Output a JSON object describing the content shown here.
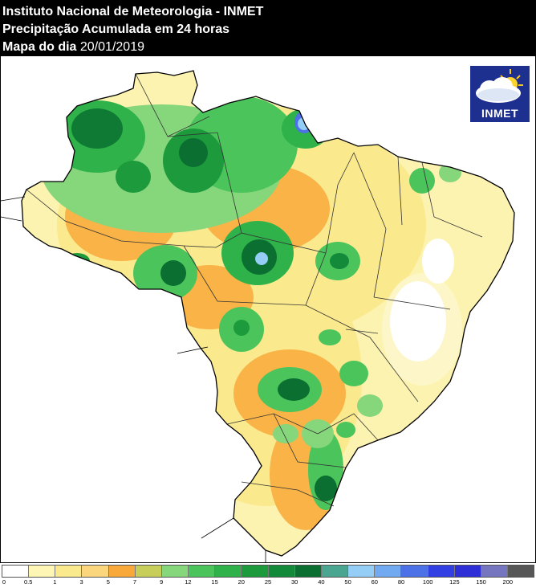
{
  "header": {
    "line1": "Instituto Nacional de Meteorologia - INMET",
    "line2": "Precipitação Acumulada em 24 horas",
    "line3_label": "Mapa do dia",
    "line3_date": "20/01/2019"
  },
  "logo": {
    "text": "INMET",
    "icon": "cloud-sun-icon"
  },
  "legend": {
    "colors": [
      "#ffffff",
      "#fdf6b4",
      "#fbe98e",
      "#fcd67c",
      "#f9a93a",
      "#c7cf5a",
      "#86d67c",
      "#4cc45c",
      "#2fb24a",
      "#1c9a3c",
      "#138a3a",
      "#0a6f30",
      "#4aa690",
      "#94cef6",
      "#71aaf1",
      "#4d72e8",
      "#3240e3",
      "#2f2fd7",
      "#7576bf",
      "#575757"
    ],
    "ticks": [
      "0",
      "0.5",
      "1",
      "3",
      "5",
      "7",
      "9",
      "12",
      "15",
      "20",
      "25",
      "30",
      "40",
      "50",
      "60",
      "80",
      "100",
      "125",
      "150",
      "200"
    ]
  }
}
